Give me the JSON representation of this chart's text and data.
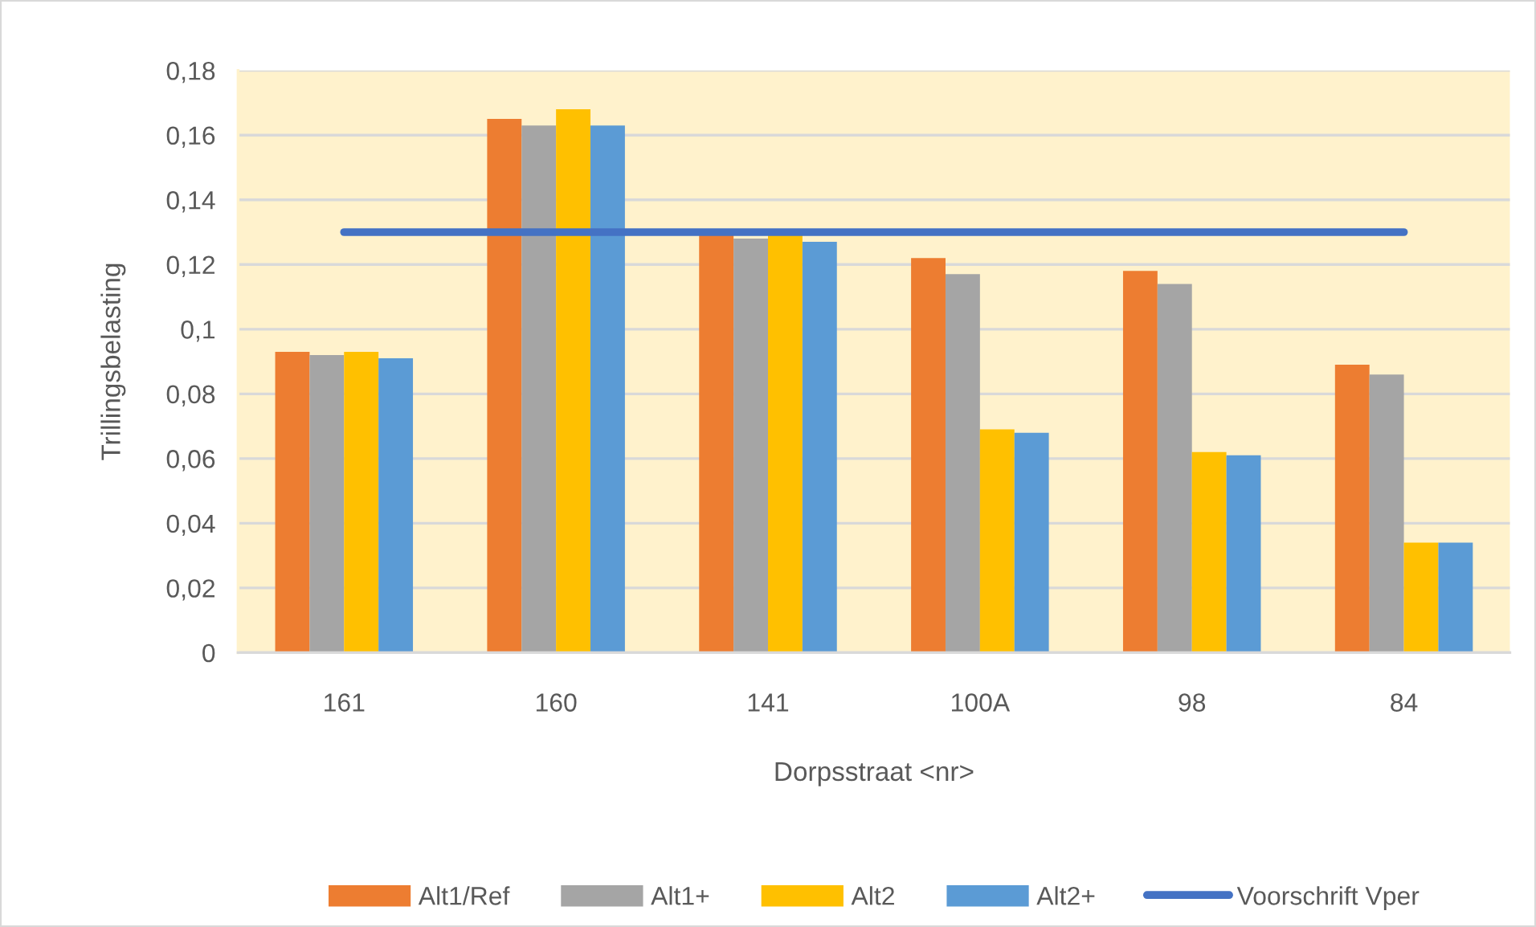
{
  "chart_data": {
    "type": "bar",
    "xlabel": "Dorpsstraat <nr>",
    "ylabel": "Trillingsbelasting",
    "categories": [
      "161",
      "160",
      "141",
      "100A",
      "98",
      "84"
    ],
    "series": [
      {
        "name": "Alt1/Ref",
        "color": "#ed7d31",
        "values": [
          0.093,
          0.165,
          0.129,
          0.122,
          0.118,
          0.089
        ]
      },
      {
        "name": "Alt1+",
        "color": "#a5a5a5",
        "values": [
          0.092,
          0.163,
          0.128,
          0.117,
          0.114,
          0.086
        ]
      },
      {
        "name": "Alt2",
        "color": "#ffc000",
        "values": [
          0.093,
          0.168,
          0.129,
          0.069,
          0.062,
          0.034
        ]
      },
      {
        "name": "Alt2+",
        "color": "#5b9bd5",
        "values": [
          0.091,
          0.163,
          0.127,
          0.068,
          0.061,
          0.034
        ]
      },
      {
        "name": "Voorschrift Vper",
        "type": "line",
        "color": "#4472c4",
        "values": [
          0.13,
          0.13,
          0.13,
          0.13,
          0.13,
          0.13
        ]
      }
    ],
    "ylim": [
      0,
      0.18
    ],
    "yticks": [
      0,
      {
        "value": 0.02,
        "label": "0,02"
      },
      {
        "value": 0.04,
        "label": "0,04"
      },
      {
        "value": 0.06,
        "label": "0,06"
      },
      {
        "value": 0.08,
        "label": "0,08"
      },
      {
        "value": 0.1,
        "label": "0,1"
      },
      {
        "value": 0.12,
        "label": "0,12"
      },
      {
        "value": 0.14,
        "label": "0,14"
      },
      {
        "value": 0.16,
        "label": "0,16"
      },
      {
        "value": 0.18,
        "label": "0,18"
      }
    ],
    "grid": "y",
    "legend": "bottom"
  }
}
